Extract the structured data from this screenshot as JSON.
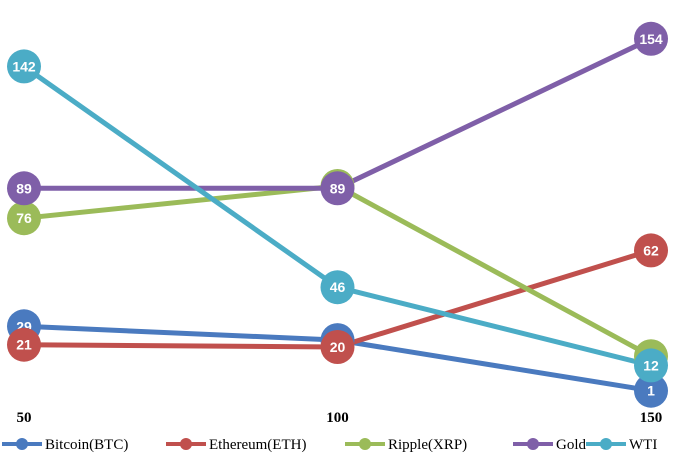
{
  "chart_data": {
    "type": "line",
    "x": [
      50,
      100,
      150
    ],
    "x_tick_labels": [
      "50",
      "100",
      "150"
    ],
    "series": [
      {
        "name": "Bitcoin(BTC)",
        "color": "#4a7abf",
        "values": [
          29,
          23,
          1
        ]
      },
      {
        "name": "Ethereum(ETH)",
        "color": "#c0504d",
        "values": [
          21,
          20,
          62
        ]
      },
      {
        "name": "Ripple(XRP)",
        "color": "#9bbb59",
        "values": [
          76,
          90,
          16
        ]
      },
      {
        "name": "Gold",
        "color": "#7f5fa8",
        "values": [
          89,
          89,
          154
        ]
      },
      {
        "name": "WTI",
        "color": "#4bacc6",
        "values": [
          142,
          46,
          12
        ]
      }
    ],
    "ylim": [
      0,
      160
    ],
    "grid": false,
    "legend_position": "bottom",
    "data_labels": true
  }
}
